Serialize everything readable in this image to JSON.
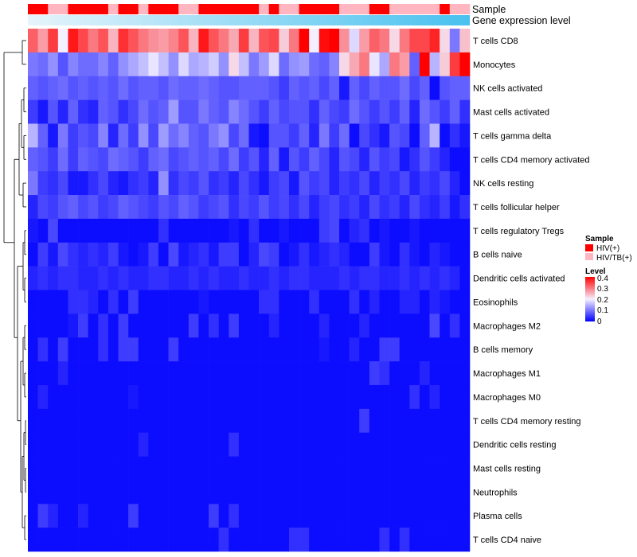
{
  "chart_data": {
    "type": "heatmap",
    "title": "",
    "annotation_labels": {
      "sample": "Sample",
      "gene_expression": "Gene expression level"
    },
    "rows": [
      "T cells CD8",
      "Monocytes",
      "NK cells activated",
      "Mast cells activated",
      "T cells gamma delta",
      "T cells CD4 memory activated",
      "NK cells resting",
      "T cells follicular helper",
      "T cells regulatory  Tregs",
      "B cells naive",
      "Dendritic cells activated",
      "Eosinophils",
      "Macrophages M2",
      "B cells memory",
      "Macrophages M1",
      "Macrophages M0",
      "T cells CD4 memory resting",
      "Dendritic cells resting",
      "Mast cells resting",
      "Neutrophils",
      "Plasma cells",
      "T cells CD4 naive"
    ],
    "n_columns": 44,
    "sample_groups": [
      "HIV(+)",
      "HIV(+)",
      "HIV/TB(+)",
      "HIV/TB(+)",
      "HIV(+)",
      "HIV(+)",
      "HIV(+)",
      "HIV(+)",
      "HIV/TB(+)",
      "HIV(+)",
      "HIV(+)",
      "HIV/TB(+)",
      "HIV(+)",
      "HIV(+)",
      "HIV(+)",
      "HIV/TB(+)",
      "HIV/TB(+)",
      "HIV(+)",
      "HIV(+)",
      "HIV(+)",
      "HIV(+)",
      "HIV(+)",
      "HIV(+)",
      "HIV/TB(+)",
      "HIV(+)",
      "HIV/TB(+)",
      "HIV/TB(+)",
      "HIV(+)",
      "HIV(+)",
      "HIV(+)",
      "HIV(+)",
      "HIV/TB(+)",
      "HIV/TB(+)",
      "HIV/TB(+)",
      "HIV(+)",
      "HIV(+)",
      "HIV/TB(+)",
      "HIV/TB(+)",
      "HIV/TB(+)",
      "HIV/TB(+)",
      "HIV/TB(+)",
      "HIV(+)",
      "HIV/TB(+)",
      "HIV/TB(+)"
    ],
    "values": [
      [
        0.32,
        0.27,
        0.35,
        0.2,
        0.38,
        0.34,
        0.3,
        0.33,
        0.25,
        0.36,
        0.33,
        0.3,
        0.28,
        0.27,
        0.29,
        0.33,
        0.25,
        0.38,
        0.33,
        0.3,
        0.26,
        0.35,
        0.25,
        0.33,
        0.34,
        0.23,
        0.3,
        0.4,
        0.2,
        0.39,
        0.4,
        0.28,
        0.18,
        0.27,
        0.32,
        0.3,
        0.22,
        0.3,
        0.34,
        0.34,
        0.37,
        0.22,
        0.1,
        0.24
      ],
      [
        0.1,
        0.09,
        0.12,
        0.07,
        0.11,
        0.09,
        0.09,
        0.11,
        0.08,
        0.12,
        0.14,
        0.16,
        0.19,
        0.16,
        0.12,
        0.18,
        0.14,
        0.15,
        0.17,
        0.12,
        0.22,
        0.16,
        0.1,
        0.13,
        0.18,
        0.09,
        0.12,
        0.13,
        0.09,
        0.08,
        0.11,
        0.22,
        0.26,
        0.3,
        0.19,
        0.14,
        0.3,
        0.27,
        0.08,
        0.4,
        0.15,
        0.23,
        0.35,
        0.4
      ],
      [
        0.08,
        0.07,
        0.08,
        0.09,
        0.07,
        0.08,
        0.07,
        0.08,
        0.07,
        0.09,
        0.07,
        0.08,
        0.08,
        0.07,
        0.09,
        0.08,
        0.08,
        0.09,
        0.08,
        0.07,
        0.07,
        0.08,
        0.08,
        0.08,
        0.07,
        0.05,
        0.08,
        0.07,
        0.08,
        0.06,
        0.08,
        0.02,
        0.08,
        0.06,
        0.08,
        0.07,
        0.07,
        0.09,
        0.06,
        0.08,
        0.01,
        0.07,
        0.08,
        0.08
      ],
      [
        0.05,
        0.02,
        0.07,
        0.03,
        0.08,
        0.04,
        0.03,
        0.08,
        0.07,
        0.04,
        0.06,
        0.09,
        0.07,
        0.08,
        0.13,
        0.07,
        0.07,
        0.1,
        0.08,
        0.07,
        0.11,
        0.09,
        0.07,
        0.05,
        0.08,
        0.06,
        0.07,
        0.07,
        0.04,
        0.08,
        0.06,
        0.05,
        0.09,
        0.07,
        0.05,
        0.07,
        0.05,
        0.08,
        0.03,
        0.09,
        0.07,
        0.05,
        0.08,
        0.04
      ],
      [
        0.15,
        0.08,
        0.02,
        0.1,
        0.05,
        0.07,
        0.06,
        0.11,
        0.03,
        0.09,
        0.05,
        0.12,
        0.06,
        0.13,
        0.09,
        0.11,
        0.08,
        0.07,
        0.1,
        0.12,
        0.06,
        0.09,
        0.02,
        0.01,
        0.07,
        0.07,
        0.05,
        0.08,
        0.03,
        0.1,
        0.05,
        0.09,
        0.01,
        0.06,
        0.04,
        0.02,
        0.07,
        0.06,
        0.01,
        0.08,
        0.15,
        0.01,
        0.04,
        0.02
      ],
      [
        0.08,
        0.07,
        0.05,
        0.09,
        0.05,
        0.08,
        0.07,
        0.06,
        0.09,
        0.08,
        0.07,
        0.05,
        0.08,
        0.09,
        0.06,
        0.07,
        0.08,
        0.07,
        0.08,
        0.06,
        0.09,
        0.05,
        0.07,
        0.03,
        0.08,
        0.02,
        0.07,
        0.05,
        0.08,
        0.06,
        0.03,
        0.07,
        0.06,
        0.03,
        0.07,
        0.05,
        0.06,
        0.02,
        0.04,
        0.07,
        0.05,
        0.03,
        0.01,
        0.01
      ],
      [
        0.1,
        0.05,
        0.04,
        0.06,
        0.02,
        0.02,
        0.04,
        0.06,
        0.03,
        0.02,
        0.04,
        0.05,
        0.03,
        0.12,
        0.04,
        0.06,
        0.05,
        0.07,
        0.04,
        0.05,
        0.03,
        0.06,
        0.04,
        0.02,
        0.05,
        0.06,
        0.02,
        0.07,
        0.05,
        0.06,
        0.03,
        0.05,
        0.04,
        0.06,
        0.03,
        0.05,
        0.04,
        0.06,
        0.03,
        0.05,
        0.04,
        0.06,
        0.03,
        0.01
      ],
      [
        0.03,
        0.06,
        0.05,
        0.07,
        0.08,
        0.06,
        0.07,
        0.05,
        0.06,
        0.08,
        0.07,
        0.06,
        0.05,
        0.07,
        0.06,
        0.08,
        0.07,
        0.05,
        0.06,
        0.07,
        0.04,
        0.06,
        0.05,
        0.07,
        0.05,
        0.06,
        0.04,
        0.06,
        0.03,
        0.05,
        0.06,
        0.04,
        0.05,
        0.03,
        0.06,
        0.04,
        0.05,
        0.03,
        0.06,
        0.04,
        0.03,
        0.05,
        0.02,
        0.04
      ],
      [
        0.02,
        0.01,
        0.06,
        0.01,
        0.01,
        0.01,
        0.01,
        0.01,
        0.01,
        0.01,
        0.01,
        0.01,
        0.01,
        0.04,
        0.01,
        0.01,
        0.01,
        0.01,
        0.01,
        0.01,
        0.02,
        0.01,
        0.04,
        0.01,
        0.01,
        0.02,
        0.01,
        0.01,
        0.01,
        0.05,
        0.06,
        0.01,
        0.03,
        0.04,
        0.01,
        0.02,
        0.01,
        0.01,
        0.02,
        0.01,
        0.01,
        0.01,
        0.01,
        0.01
      ],
      [
        0.01,
        0.05,
        0.02,
        0.06,
        0.04,
        0.03,
        0.04,
        0.03,
        0.05,
        0.02,
        0.01,
        0.02,
        0.05,
        0.01,
        0.06,
        0.02,
        0.03,
        0.04,
        0.02,
        0.05,
        0.05,
        0.01,
        0.03,
        0.06,
        0.05,
        0.01,
        0.02,
        0.04,
        0.02,
        0.03,
        0.04,
        0.03,
        0.01,
        0.01,
        0.05,
        0.02,
        0.01,
        0.04,
        0.02,
        0.01,
        0.03,
        0.02,
        0.01,
        0.01
      ],
      [
        0.03,
        0.04,
        0.03,
        0.04,
        0.04,
        0.03,
        0.03,
        0.04,
        0.03,
        0.04,
        0.03,
        0.03,
        0.04,
        0.04,
        0.03,
        0.03,
        0.04,
        0.03,
        0.04,
        0.03,
        0.03,
        0.04,
        0.03,
        0.03,
        0.04,
        0.03,
        0.04,
        0.04,
        0.03,
        0.03,
        0.03,
        0.04,
        0.03,
        0.04,
        0.04,
        0.03,
        0.03,
        0.04,
        0.03,
        0.04,
        0.03,
        0.04,
        0.03,
        0.01
      ],
      [
        0.01,
        0.01,
        0.01,
        0.01,
        0.04,
        0.04,
        0.03,
        0.01,
        0.04,
        0.01,
        0.05,
        0.01,
        0.01,
        0.01,
        0.01,
        0.01,
        0.01,
        0.02,
        0.01,
        0.01,
        0.01,
        0.01,
        0.01,
        0.04,
        0.04,
        0.01,
        0.01,
        0.01,
        0.04,
        0.01,
        0.01,
        0.01,
        0.04,
        0.01,
        0.03,
        0.01,
        0.01,
        0.03,
        0.03,
        0.01,
        0.03,
        0.02,
        0.01,
        0.01
      ],
      [
        0.01,
        0.01,
        0.01,
        0.01,
        0.02,
        0.05,
        0.01,
        0.04,
        0.01,
        0.05,
        0.01,
        0.01,
        0.01,
        0.01,
        0.01,
        0.01,
        0.05,
        0.01,
        0.04,
        0.01,
        0.05,
        0.01,
        0.01,
        0.01,
        0.03,
        0.01,
        0.01,
        0.01,
        0.01,
        0.03,
        0.01,
        0.01,
        0.01,
        0.03,
        0.01,
        0.01,
        0.01,
        0.01,
        0.01,
        0.01,
        0.06,
        0.01,
        0.04,
        0.01
      ],
      [
        0.01,
        0.04,
        0.01,
        0.05,
        0.01,
        0.01,
        0.01,
        0.04,
        0.01,
        0.05,
        0.05,
        0.01,
        0.01,
        0.01,
        0.05,
        0.01,
        0.01,
        0.01,
        0.01,
        0.01,
        0.01,
        0.01,
        0.01,
        0.01,
        0.01,
        0.01,
        0.01,
        0.01,
        0.01,
        0.02,
        0.01,
        0.01,
        0.03,
        0.01,
        0.01,
        0.05,
        0.05,
        0.01,
        0.01,
        0.01,
        0.01,
        0.01,
        0.01,
        0.01
      ],
      [
        0.01,
        0.01,
        0.01,
        0.03,
        0.01,
        0.01,
        0.01,
        0.01,
        0.01,
        0.01,
        0.01,
        0.01,
        0.01,
        0.01,
        0.01,
        0.01,
        0.01,
        0.01,
        0.01,
        0.01,
        0.01,
        0.01,
        0.01,
        0.01,
        0.01,
        0.01,
        0.01,
        0.01,
        0.01,
        0.01,
        0.01,
        0.01,
        0.01,
        0.01,
        0.05,
        0.04,
        0.01,
        0.01,
        0.01,
        0.03,
        0.01,
        0.01,
        0.01,
        0.01
      ],
      [
        0.01,
        0.03,
        0.01,
        0.01,
        0.01,
        0.01,
        0.01,
        0.01,
        0.01,
        0.01,
        0.02,
        0.01,
        0.01,
        0.01,
        0.01,
        0.01,
        0.01,
        0.01,
        0.01,
        0.01,
        0.01,
        0.01,
        0.01,
        0.01,
        0.01,
        0.01,
        0.01,
        0.01,
        0.01,
        0.01,
        0.01,
        0.01,
        0.01,
        0.01,
        0.01,
        0.01,
        0.01,
        0.01,
        0.04,
        0.01,
        0.03,
        0.01,
        0.01,
        0.01
      ],
      [
        0.01,
        0.01,
        0.01,
        0.01,
        0.01,
        0.01,
        0.01,
        0.01,
        0.01,
        0.01,
        0.01,
        0.01,
        0.01,
        0.01,
        0.01,
        0.01,
        0.01,
        0.01,
        0.01,
        0.01,
        0.01,
        0.01,
        0.01,
        0.01,
        0.01,
        0.01,
        0.01,
        0.01,
        0.01,
        0.01,
        0.01,
        0.01,
        0.01,
        0.05,
        0.01,
        0.01,
        0.01,
        0.01,
        0.01,
        0.01,
        0.01,
        0.01,
        0.01,
        0.01
      ],
      [
        0.01,
        0.01,
        0.01,
        0.01,
        0.01,
        0.01,
        0.01,
        0.01,
        0.01,
        0.01,
        0.01,
        0.03,
        0.01,
        0.01,
        0.01,
        0.01,
        0.01,
        0.01,
        0.01,
        0.01,
        0.04,
        0.01,
        0.01,
        0.01,
        0.01,
        0.01,
        0.01,
        0.01,
        0.01,
        0.01,
        0.01,
        0.01,
        0.01,
        0.01,
        0.01,
        0.01,
        0.01,
        0.01,
        0.01,
        0.01,
        0.01,
        0.01,
        0.01,
        0.01
      ],
      [
        0.01,
        0.01,
        0.01,
        0.01,
        0.01,
        0.01,
        0.01,
        0.01,
        0.01,
        0.01,
        0.01,
        0.01,
        0.01,
        0.01,
        0.01,
        0.01,
        0.01,
        0.01,
        0.01,
        0.01,
        0.01,
        0.01,
        0.01,
        0.01,
        0.01,
        0.01,
        0.01,
        0.01,
        0.01,
        0.01,
        0.01,
        0.01,
        0.01,
        0.01,
        0.01,
        0.01,
        0.01,
        0.01,
        0.01,
        0.01,
        0.01,
        0.01,
        0.01,
        0.01
      ],
      [
        0.01,
        0.01,
        0.01,
        0.01,
        0.01,
        0.01,
        0.01,
        0.01,
        0.01,
        0.01,
        0.01,
        0.01,
        0.01,
        0.01,
        0.01,
        0.01,
        0.01,
        0.01,
        0.01,
        0.01,
        0.01,
        0.01,
        0.01,
        0.01,
        0.01,
        0.01,
        0.01,
        0.01,
        0.01,
        0.01,
        0.01,
        0.01,
        0.01,
        0.01,
        0.01,
        0.01,
        0.01,
        0.01,
        0.01,
        0.01,
        0.01,
        0.01,
        0.01,
        0.01
      ],
      [
        0.01,
        0.05,
        0.03,
        0.01,
        0.01,
        0.03,
        0.01,
        0.01,
        0.01,
        0.01,
        0.05,
        0.01,
        0.01,
        0.01,
        0.01,
        0.01,
        0.01,
        0.01,
        0.05,
        0.01,
        0.04,
        0.01,
        0.01,
        0.01,
        0.01,
        0.01,
        0.01,
        0.01,
        0.01,
        0.01,
        0.01,
        0.01,
        0.01,
        0.01,
        0.01,
        0.01,
        0.01,
        0.01,
        0.01,
        0.01,
        0.01,
        0.01,
        0.01,
        0.01
      ],
      [
        0.01,
        0.01,
        0.01,
        0.01,
        0.01,
        0.01,
        0.01,
        0.01,
        0.01,
        0.01,
        0.01,
        0.01,
        0.01,
        0.01,
        0.01,
        0.01,
        0.01,
        0.01,
        0.01,
        0.04,
        0.01,
        0.01,
        0.01,
        0.01,
        0.01,
        0.01,
        0.04,
        0.04,
        0.01,
        0.01,
        0.01,
        0.01,
        0.01,
        0.01,
        0.01,
        0.04,
        0.01,
        0.04,
        0.01,
        0.01,
        0.01,
        0.01,
        0.01,
        0.01
      ]
    ],
    "color_scale": {
      "min": 0,
      "mid": 0.2,
      "max": 0.4,
      "low_color": "#0000ff",
      "mid_color": "#f5f0ff",
      "high_color": "#ff0000"
    },
    "group_colors": {
      "HIV(+)": "#ff0000",
      "HIV/TB(+)": "#ffb6c1"
    },
    "gradient_bar": {
      "from": "#e6f4fb",
      "to": "#48c1ef"
    }
  },
  "legend": {
    "sample_title": "Sample",
    "sample_items": [
      {
        "label": "HIV(+)",
        "color": "#ff0000"
      },
      {
        "label": "HIV/TB(+)",
        "color": "#ffb6c1"
      }
    ],
    "level_title": "Level",
    "level_ticks": [
      "0.4",
      "0.3",
      "0.2",
      "0.1",
      "0"
    ]
  }
}
